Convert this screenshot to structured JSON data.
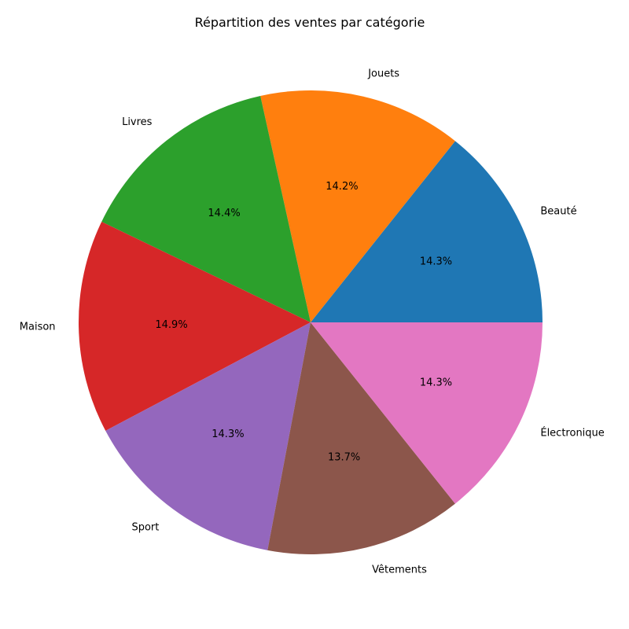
{
  "chart_data": {
    "type": "pie",
    "title": "Répartition des ventes par catégorie",
    "categories": [
      "Beauté",
      "Jouets",
      "Livres",
      "Maison",
      "Sport",
      "Vêtements",
      "Électronique"
    ],
    "values": [
      14.3,
      14.2,
      14.4,
      14.9,
      14.3,
      13.7,
      14.3
    ],
    "value_labels": [
      "14.3%",
      "14.2%",
      "14.4%",
      "14.9%",
      "14.3%",
      "13.7%",
      "14.3%"
    ],
    "colors": [
      "#1f77b4",
      "#ff7f0e",
      "#2ca02c",
      "#d62728",
      "#9467bd",
      "#8c564b",
      "#e377c2"
    ],
    "start_angle_deg": 0,
    "direction": "counterclockwise",
    "legend": "none"
  }
}
